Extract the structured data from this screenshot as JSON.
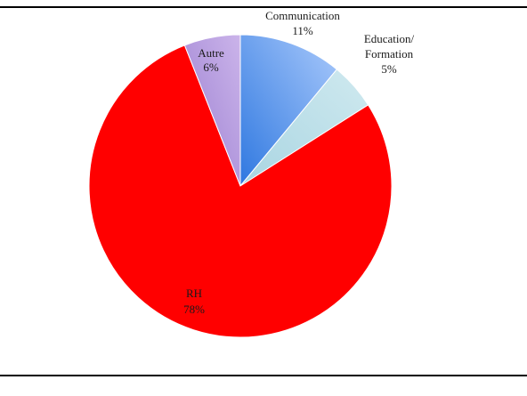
{
  "chart_data": {
    "type": "pie",
    "slices": [
      {
        "name": "Communication",
        "value": 11,
        "label": "11%",
        "color": "#6aa0f0",
        "label_lines": [
          "Communication",
          "11%"
        ]
      },
      {
        "name": "Education/ Formation",
        "value": 5,
        "label": "5%",
        "color": "#b9dde6",
        "label_lines": [
          "Education/",
          "Formation",
          "5%"
        ]
      },
      {
        "name": "RH",
        "value": 78,
        "label": "78%",
        "color": "#ff0000",
        "label_lines": [
          "RH",
          "78%"
        ]
      },
      {
        "name": "Autre",
        "value": 6,
        "label": "6%",
        "color": "#b59ad9",
        "label_lines": [
          "Autre",
          "6%"
        ]
      }
    ],
    "start_angle_deg": 0,
    "direction": "clockwise"
  }
}
